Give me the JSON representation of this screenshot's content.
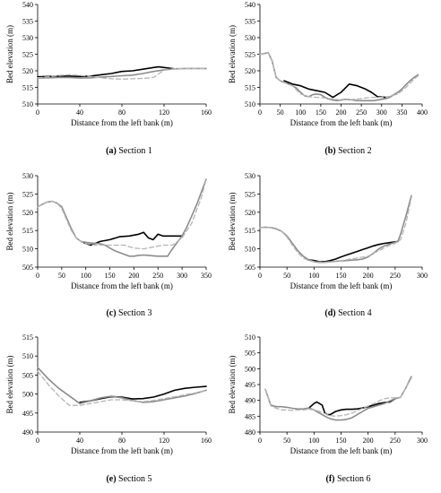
{
  "chart_data": [
    {
      "type": "line",
      "caption_letter": "(a)",
      "caption_text": "Section 1",
      "xlabel": "Distance from the left bank (m)",
      "ylabel": "Bed elevation (m)",
      "xlim": [
        0,
        160
      ],
      "ylim": [
        510,
        540
      ],
      "xticks": [
        0,
        40,
        80,
        120,
        160
      ],
      "yticks": [
        510,
        515,
        520,
        525,
        530,
        535,
        540
      ],
      "series": [
        {
          "style": "solid-black",
          "color": "#000000",
          "x": [
            0,
            10,
            20,
            30,
            40,
            50,
            60,
            70,
            80,
            90,
            100,
            110,
            115,
            120,
            125,
            130
          ],
          "y": [
            518.2,
            518.3,
            518.4,
            518.4,
            518.3,
            518.4,
            518.8,
            519.2,
            519.8,
            520.0,
            520.5,
            521.0,
            521.2,
            521.0,
            520.8,
            520.6
          ]
        },
        {
          "style": "solid-gray",
          "color": "#8c8c8c",
          "x": [
            0,
            10,
            20,
            30,
            40,
            50,
            60,
            70,
            80,
            90,
            100,
            110,
            120,
            130,
            140,
            150,
            160
          ],
          "y": [
            517.8,
            517.9,
            518.0,
            518.0,
            517.8,
            517.9,
            518.1,
            518.3,
            518.5,
            518.7,
            519.2,
            519.8,
            520.3,
            520.6,
            520.7,
            520.7,
            520.7
          ]
        },
        {
          "style": "dashed-gray",
          "color": "#b5b5b5",
          "x": [
            0,
            10,
            20,
            30,
            40,
            50,
            60,
            70,
            80,
            90,
            100,
            110,
            120,
            130,
            140,
            150,
            160
          ],
          "y": [
            517.9,
            518.2,
            518.6,
            518.8,
            518.6,
            518.3,
            517.9,
            517.6,
            517.5,
            517.6,
            517.7,
            518.0,
            520.2,
            520.6,
            520.7,
            520.7,
            520.7
          ]
        }
      ]
    },
    {
      "type": "line",
      "caption_letter": "(b)",
      "caption_text": "Section 2",
      "xlabel": "Distance from the left bank (m)",
      "ylabel": "Bed elevation (m)",
      "xlim": [
        0,
        400
      ],
      "ylim": [
        510,
        540
      ],
      "xticks": [
        0,
        50,
        100,
        150,
        200,
        250,
        300,
        350,
        400
      ],
      "yticks": [
        510,
        515,
        520,
        525,
        530,
        535,
        540
      ],
      "series": [
        {
          "style": "solid-black",
          "color": "#000000",
          "x": [
            60,
            80,
            100,
            120,
            140,
            160,
            180,
            200,
            220,
            240,
            260,
            275,
            290,
            310
          ],
          "y": [
            517.0,
            516.0,
            515.5,
            514.5,
            514.0,
            513.5,
            512.0,
            513.5,
            516.0,
            515.5,
            514.5,
            513.5,
            512.2,
            512.0
          ]
        },
        {
          "style": "solid-gray",
          "color": "#8c8c8c",
          "x": [
            0,
            10,
            20,
            30,
            40,
            50,
            60,
            70,
            80,
            90,
            100,
            110,
            120,
            130,
            140,
            150,
            160,
            170,
            180,
            190,
            200,
            210,
            220,
            230,
            240,
            250,
            260,
            270,
            280,
            290,
            300,
            310,
            320,
            330,
            340,
            350,
            360,
            370,
            380,
            390
          ],
          "y": [
            525.0,
            525.2,
            525.5,
            523.0,
            518.0,
            517.0,
            516.5,
            516.0,
            515.5,
            514.8,
            513.5,
            512.5,
            512.2,
            512.8,
            513.0,
            512.8,
            512.0,
            511.5,
            511.2,
            511.0,
            511.2,
            511.4,
            511.3,
            511.2,
            511.0,
            511.0,
            511.0,
            511.0,
            511.0,
            511.2,
            511.4,
            511.6,
            512.0,
            512.8,
            513.5,
            514.5,
            515.8,
            517.0,
            518.0,
            518.8
          ]
        },
        {
          "style": "dashed-gray",
          "color": "#b5b5b5",
          "x": [
            0,
            20,
            30,
            40,
            50,
            60,
            70,
            80,
            100,
            120,
            140,
            160,
            180,
            200,
            220,
            240,
            260,
            280,
            300,
            320,
            340,
            360,
            380,
            390
          ],
          "y": [
            525.0,
            525.5,
            523.0,
            518.0,
            517.0,
            516.5,
            516.0,
            515.5,
            513.0,
            512.2,
            512.0,
            511.8,
            511.5,
            511.2,
            511.3,
            511.5,
            511.8,
            512.0,
            512.0,
            512.3,
            513.0,
            515.0,
            517.5,
            518.5
          ]
        }
      ]
    },
    {
      "type": "line",
      "caption_letter": "(c)",
      "caption_text": "Section 3",
      "xlabel": "Distance from the left bank (m)",
      "ylabel": "Bed elevation (m)",
      "xlim": [
        0,
        350
      ],
      "ylim": [
        505,
        530
      ],
      "xticks": [
        0,
        50,
        100,
        150,
        200,
        250,
        300,
        350
      ],
      "yticks": [
        505,
        510,
        515,
        520,
        525,
        530
      ],
      "series": [
        {
          "style": "solid-black",
          "color": "#000000",
          "x": [
            90,
            110,
            130,
            150,
            170,
            190,
            210,
            220,
            230,
            240,
            250,
            260,
            280,
            300
          ],
          "y": [
            512.0,
            511.0,
            512.0,
            512.5,
            513.3,
            513.5,
            514.0,
            514.5,
            513.0,
            512.5,
            514.0,
            513.5,
            513.5,
            513.5
          ]
        },
        {
          "style": "solid-gray",
          "color": "#8c8c8c",
          "x": [
            0,
            10,
            20,
            30,
            40,
            50,
            60,
            70,
            80,
            90,
            100,
            110,
            120,
            130,
            140,
            150,
            160,
            170,
            180,
            190,
            200,
            210,
            220,
            230,
            240,
            250,
            260,
            270,
            280,
            290,
            300,
            310,
            320,
            330,
            340,
            350
          ],
          "y": [
            521.5,
            522.2,
            522.8,
            523.0,
            522.5,
            521.5,
            518.5,
            515.5,
            513.0,
            512.0,
            511.8,
            511.6,
            511.5,
            511.4,
            511.0,
            510.2,
            509.5,
            509.0,
            508.5,
            508.0,
            508.0,
            508.2,
            508.3,
            508.2,
            508.1,
            508.0,
            508.0,
            508.0,
            510.0,
            511.8,
            513.5,
            516.0,
            519.0,
            522.0,
            525.5,
            529.0
          ]
        },
        {
          "style": "dashed-gray",
          "color": "#b5b5b5",
          "x": [
            0,
            20,
            30,
            40,
            50,
            60,
            70,
            80,
            90,
            100,
            120,
            140,
            160,
            180,
            200,
            220,
            240,
            260,
            280,
            300,
            320,
            340,
            350
          ],
          "y": [
            521.5,
            522.8,
            523.0,
            522.5,
            521.0,
            518.0,
            515.0,
            513.0,
            512.0,
            511.5,
            511.0,
            511.0,
            511.0,
            511.0,
            510.2,
            510.0,
            510.5,
            511.0,
            511.0,
            513.0,
            517.0,
            524.0,
            529.0
          ]
        }
      ]
    },
    {
      "type": "line",
      "caption_letter": "(d)",
      "caption_text": "Section 4",
      "xlabel": "Distance from the left bank (m)",
      "ylabel": "Bed elevation (m)",
      "xlim": [
        0,
        300
      ],
      "ylim": [
        505,
        530
      ],
      "xticks": [
        0,
        50,
        100,
        150,
        200,
        250,
        300
      ],
      "yticks": [
        505,
        510,
        515,
        520,
        525,
        530
      ],
      "series": [
        {
          "style": "solid-black",
          "color": "#000000",
          "x": [
            90,
            100,
            110,
            120,
            130,
            140,
            150,
            160,
            170,
            180,
            190,
            200,
            210,
            220,
            230,
            240,
            250,
            255
          ],
          "y": [
            507.0,
            506.8,
            506.5,
            506.5,
            506.8,
            507.2,
            507.8,
            508.3,
            508.8,
            509.3,
            509.8,
            510.3,
            510.8,
            511.2,
            511.5,
            511.7,
            511.9,
            512.0
          ]
        },
        {
          "style": "solid-gray",
          "color": "#8c8c8c",
          "x": [
            0,
            10,
            20,
            30,
            40,
            50,
            60,
            70,
            80,
            90,
            100,
            110,
            120,
            130,
            140,
            150,
            160,
            170,
            180,
            190,
            200,
            210,
            220,
            230,
            240,
            250,
            255,
            260,
            270,
            280
          ],
          "y": [
            515.8,
            515.9,
            515.8,
            515.5,
            514.8,
            513.5,
            511.5,
            509.5,
            508.0,
            507.0,
            506.5,
            506.3,
            506.3,
            506.5,
            506.6,
            506.7,
            506.8,
            506.9,
            507.0,
            507.2,
            507.8,
            508.8,
            510.0,
            510.8,
            511.3,
            511.8,
            512.0,
            514.0,
            519.0,
            524.5
          ]
        },
        {
          "style": "dashed-gray",
          "color": "#b5b5b5",
          "x": [
            0,
            20,
            40,
            50,
            60,
            70,
            80,
            90,
            100,
            120,
            140,
            160,
            180,
            200,
            220,
            240,
            250,
            260,
            270,
            280
          ],
          "y": [
            515.8,
            515.8,
            514.8,
            513.2,
            511.0,
            509.0,
            507.5,
            506.8,
            506.5,
            506.3,
            506.5,
            507.0,
            507.5,
            508.0,
            509.5,
            511.0,
            511.5,
            512.5,
            517.0,
            524.0
          ]
        }
      ]
    },
    {
      "type": "line",
      "caption_letter": "(e)",
      "caption_text": "Section 5",
      "xlabel": "Distance from the left bank (m)",
      "ylabel": "Bed elevation (m)",
      "xlim": [
        0,
        160
      ],
      "ylim": [
        490,
        515
      ],
      "xticks": [
        0,
        40,
        80,
        120,
        160
      ],
      "yticks": [
        490,
        495,
        500,
        505,
        510,
        515
      ],
      "series": [
        {
          "style": "solid-black",
          "color": "#000000",
          "x": [
            40,
            50,
            60,
            70,
            80,
            90,
            100,
            110,
            120,
            130,
            140,
            150,
            160
          ],
          "y": [
            497.8,
            498.2,
            498.8,
            499.3,
            499.2,
            498.7,
            498.8,
            499.2,
            500.0,
            501.0,
            501.5,
            501.8,
            502.0
          ]
        },
        {
          "style": "solid-gray",
          "color": "#8c8c8c",
          "x": [
            0,
            10,
            20,
            30,
            40,
            50,
            60,
            70,
            80,
            90,
            100,
            110,
            120,
            130,
            140,
            150,
            160
          ],
          "y": [
            507.0,
            504.0,
            501.5,
            499.5,
            497.5,
            498.2,
            499.0,
            499.4,
            499.0,
            498.3,
            497.8,
            498.0,
            498.5,
            499.0,
            499.5,
            500.2,
            501.0
          ]
        },
        {
          "style": "dashed-gray",
          "color": "#b5b5b5",
          "x": [
            0,
            10,
            20,
            30,
            40,
            50,
            60,
            70,
            80,
            90,
            100,
            110,
            120,
            130,
            140,
            150,
            160
          ],
          "y": [
            506.0,
            502.5,
            499.5,
            497.0,
            497.0,
            497.5,
            498.0,
            498.5,
            498.5,
            498.2,
            498.0,
            498.3,
            498.8,
            499.3,
            499.8,
            500.3,
            501.0
          ]
        }
      ]
    },
    {
      "type": "line",
      "caption_letter": "(f)",
      "caption_text": "Section 6",
      "xlabel": "Distance from the left bank (m)",
      "ylabel": "Bed elevation (m)",
      "xlim": [
        0,
        300
      ],
      "ylim": [
        480,
        510
      ],
      "xticks": [
        0,
        50,
        100,
        150,
        200,
        250,
        300
      ],
      "yticks": [
        480,
        485,
        490,
        495,
        500,
        505,
        510
      ],
      "series": [
        {
          "style": "solid-black",
          "color": "#000000",
          "x": [
            90,
            100,
            105,
            110,
            115,
            120,
            125,
            130,
            140,
            150,
            160,
            170,
            180,
            190,
            200,
            210,
            220,
            230,
            240,
            250
          ],
          "y": [
            487.5,
            489.0,
            489.5,
            489.0,
            488.5,
            486.0,
            485.5,
            485.5,
            486.5,
            487.0,
            487.2,
            487.2,
            487.3,
            487.6,
            488.0,
            488.5,
            489.0,
            489.3,
            489.5,
            490.5
          ]
        },
        {
          "style": "solid-gray",
          "color": "#8c8c8c",
          "x": [
            10,
            20,
            30,
            40,
            50,
            60,
            70,
            80,
            90,
            100,
            110,
            120,
            130,
            140,
            150,
            160,
            170,
            180,
            190,
            200,
            210,
            220,
            230,
            240,
            250,
            260,
            270,
            280
          ],
          "y": [
            493.5,
            488.5,
            488.0,
            488.0,
            487.8,
            487.5,
            487.3,
            487.3,
            487.6,
            487.0,
            486.0,
            485.0,
            484.2,
            483.8,
            483.8,
            484.0,
            484.5,
            485.5,
            486.5,
            487.5,
            488.0,
            488.5,
            489.0,
            489.8,
            490.5,
            491.0,
            494.0,
            497.5
          ]
        },
        {
          "style": "dashed-gray",
          "color": "#b5b5b5",
          "x": [
            10,
            20,
            30,
            40,
            50,
            60,
            70,
            80,
            90,
            100,
            110,
            120,
            130,
            140,
            150,
            160,
            170,
            180,
            190,
            200,
            210,
            220,
            230,
            240,
            250,
            260,
            270,
            280
          ],
          "y": [
            493.5,
            488.3,
            487.5,
            487.0,
            487.0,
            486.8,
            487.0,
            487.0,
            487.2,
            487.0,
            486.5,
            485.8,
            485.2,
            485.0,
            485.2,
            485.5,
            486.0,
            486.8,
            487.5,
            488.2,
            489.0,
            489.8,
            490.5,
            490.8,
            490.8,
            491.0,
            494.0,
            497.0
          ]
        }
      ]
    }
  ]
}
